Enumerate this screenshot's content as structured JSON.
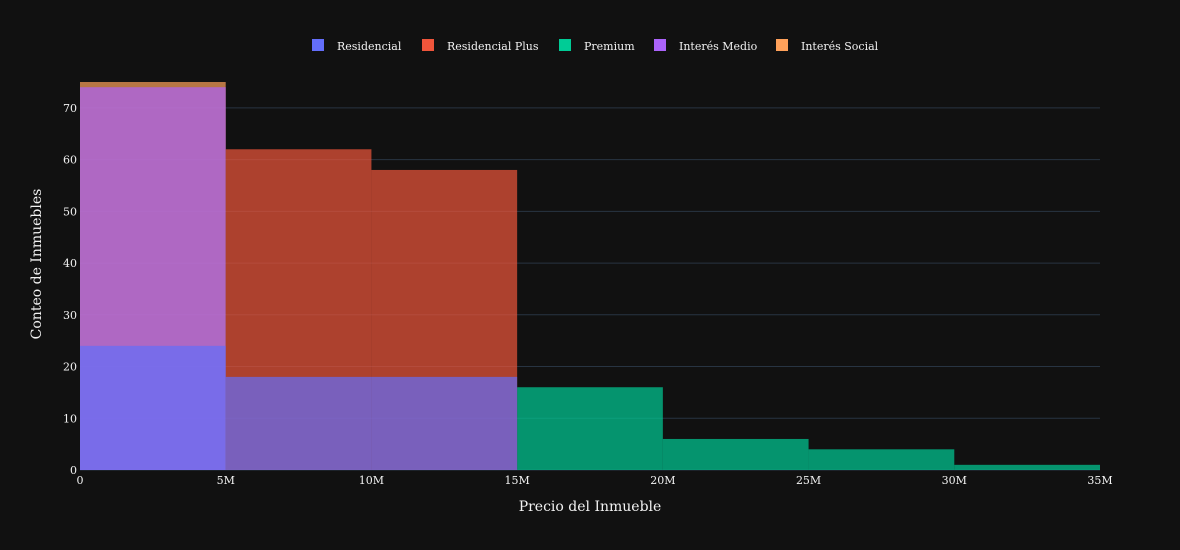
{
  "chart_data": {
    "type": "bar",
    "barmode": "overlay",
    "xlabel": "Precio del Inmueble",
    "ylabel": "Conteo de Inmuebles",
    "xlim": [
      0,
      35000000
    ],
    "ylim": [
      0,
      75
    ],
    "x_ticks": [
      {
        "value": 0,
        "label": "0"
      },
      {
        "value": 5000000,
        "label": "5M"
      },
      {
        "value": 10000000,
        "label": "10M"
      },
      {
        "value": 15000000,
        "label": "15M"
      },
      {
        "value": 20000000,
        "label": "20M"
      },
      {
        "value": 25000000,
        "label": "25M"
      },
      {
        "value": 30000000,
        "label": "30M"
      },
      {
        "value": 35000000,
        "label": "35M"
      }
    ],
    "y_ticks": [
      0,
      10,
      20,
      30,
      40,
      50,
      60,
      70
    ],
    "grid": true,
    "legend_position": "top-center",
    "series": [
      {
        "name": "Interés Social",
        "color": "#FFA15A",
        "bins": [
          {
            "x0": 0,
            "x1": 5000000,
            "count": 75
          }
        ]
      },
      {
        "name": "Interés Medio",
        "color": "#AB63FA",
        "bins": [
          {
            "x0": 0,
            "x1": 5000000,
            "count": 74
          }
        ]
      },
      {
        "name": "Residencial Plus",
        "color": "#EF553B",
        "bins": [
          {
            "x0": 5000000,
            "x1": 10000000,
            "count": 62
          },
          {
            "x0": 10000000,
            "x1": 15000000,
            "count": 58
          }
        ]
      },
      {
        "name": "Premium",
        "color": "#00CC96",
        "bins": [
          {
            "x0": 15000000,
            "x1": 20000000,
            "count": 16
          },
          {
            "x0": 20000000,
            "x1": 25000000,
            "count": 6
          },
          {
            "x0": 25000000,
            "x1": 30000000,
            "count": 4
          },
          {
            "x0": 30000000,
            "x1": 35000000,
            "count": 1
          }
        ]
      },
      {
        "name": "Residencial",
        "color": "#636EFA",
        "bins": [
          {
            "x0": 0,
            "x1": 5000000,
            "count": 24
          },
          {
            "x0": 5000000,
            "x1": 10000000,
            "count": 18
          },
          {
            "x0": 10000000,
            "x1": 15000000,
            "count": 18
          }
        ]
      }
    ],
    "legend": [
      "Residencial",
      "Residencial Plus",
      "Premium",
      "Interés Medio",
      "Interés Social"
    ]
  }
}
